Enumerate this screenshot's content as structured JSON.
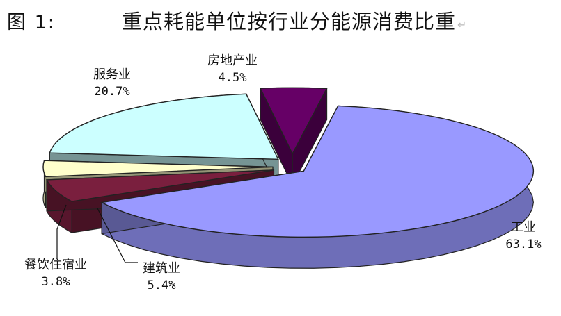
{
  "figure": {
    "label": "图 1:",
    "title": "重点耗能单位按行业分能源消费比重",
    "paragraph_mark": "↵"
  },
  "chart_data": {
    "type": "pie",
    "style": "3d-exploded",
    "title": "重点耗能单位按行业分能源消费比重",
    "categories": [
      "工业",
      "建筑业",
      "餐饮住宿业",
      "服务业",
      "房地产业"
    ],
    "values": [
      63.1,
      5.4,
      3.8,
      20.7,
      4.5
    ],
    "value_labels": [
      "63.1%",
      "5.4%",
      "3.8%",
      "20.7%",
      "4.5%"
    ],
    "unit": "%",
    "colors": [
      "#9999ff",
      "#7a1f3e",
      "#ffffcc",
      "#ccffff",
      "#660066"
    ],
    "legend": "none",
    "labels_position": "outside-with-leader-lines"
  }
}
